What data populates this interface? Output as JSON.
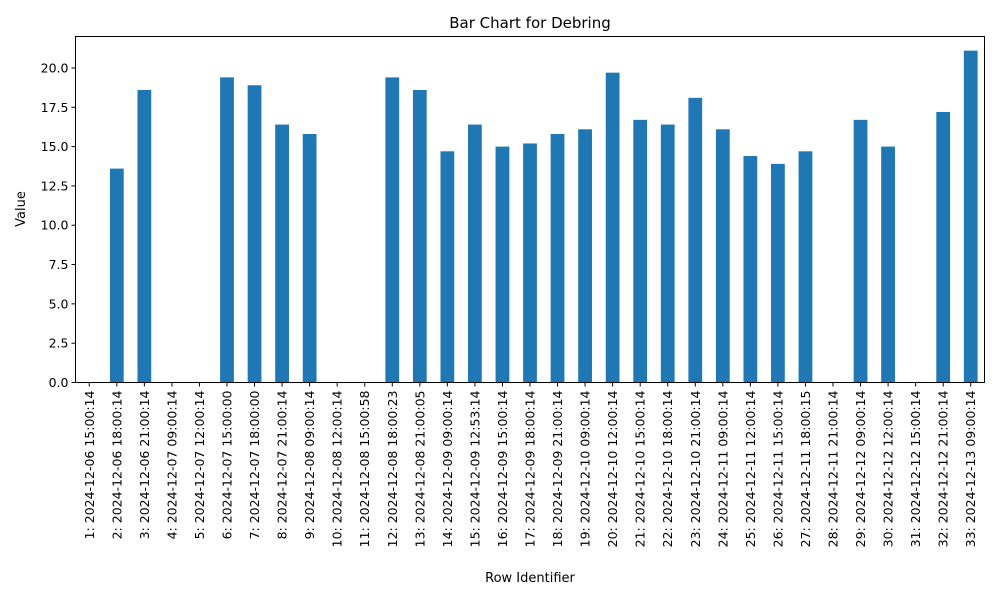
{
  "chart_data": {
    "type": "bar",
    "title": "Bar Chart for Debring",
    "xlabel": "Row Identifier",
    "ylabel": "Value",
    "ylim": [
      0,
      22
    ],
    "yticks": [
      "0.0",
      "2.5",
      "5.0",
      "7.5",
      "10.0",
      "12.5",
      "15.0",
      "17.5",
      "20.0"
    ],
    "grid": false,
    "color": "#1f77b4",
    "categories": [
      "1: 2024-12-06 15:00:14",
      "2: 2024-12-06 18:00:14",
      "3: 2024-12-06 21:00:14",
      "4: 2024-12-07 09:00:14",
      "5: 2024-12-07 12:00:14",
      "6: 2024-12-07 15:00:00",
      "7: 2024-12-07 18:00:00",
      "8: 2024-12-07 21:00:14",
      "9: 2024-12-08 09:00:14",
      "10: 2024-12-08 12:00:14",
      "11: 2024-12-08 15:00:58",
      "12: 2024-12-08 18:00:23",
      "13: 2024-12-08 21:00:05",
      "14: 2024-12-09 09:00:14",
      "15: 2024-12-09 12:53:14",
      "16: 2024-12-09 15:00:14",
      "17: 2024-12-09 18:00:14",
      "18: 2024-12-09 21:00:14",
      "19: 2024-12-10 09:00:14",
      "20: 2024-12-10 12:00:14",
      "21: 2024-12-10 15:00:14",
      "22: 2024-12-10 18:00:14",
      "23: 2024-12-10 21:00:14",
      "24: 2024-12-11 09:00:14",
      "25: 2024-12-11 12:00:14",
      "26: 2024-12-11 15:00:14",
      "27: 2024-12-11 18:00:15",
      "28: 2024-12-11 21:00:14",
      "29: 2024-12-12 09:00:14",
      "30: 2024-12-12 12:00:14",
      "31: 2024-12-12 15:00:14",
      "32: 2024-12-12 21:00:14",
      "33: 2024-12-13 09:00:14"
    ],
    "values": [
      0,
      13.6,
      18.6,
      0,
      0,
      19.4,
      18.9,
      16.4,
      15.8,
      0,
      0,
      19.4,
      18.6,
      14.7,
      16.4,
      15.0,
      15.2,
      15.8,
      16.1,
      19.7,
      16.7,
      16.4,
      18.1,
      16.1,
      14.4,
      13.9,
      14.7,
      0,
      16.7,
      15.0,
      0,
      17.2,
      21.1
    ]
  }
}
